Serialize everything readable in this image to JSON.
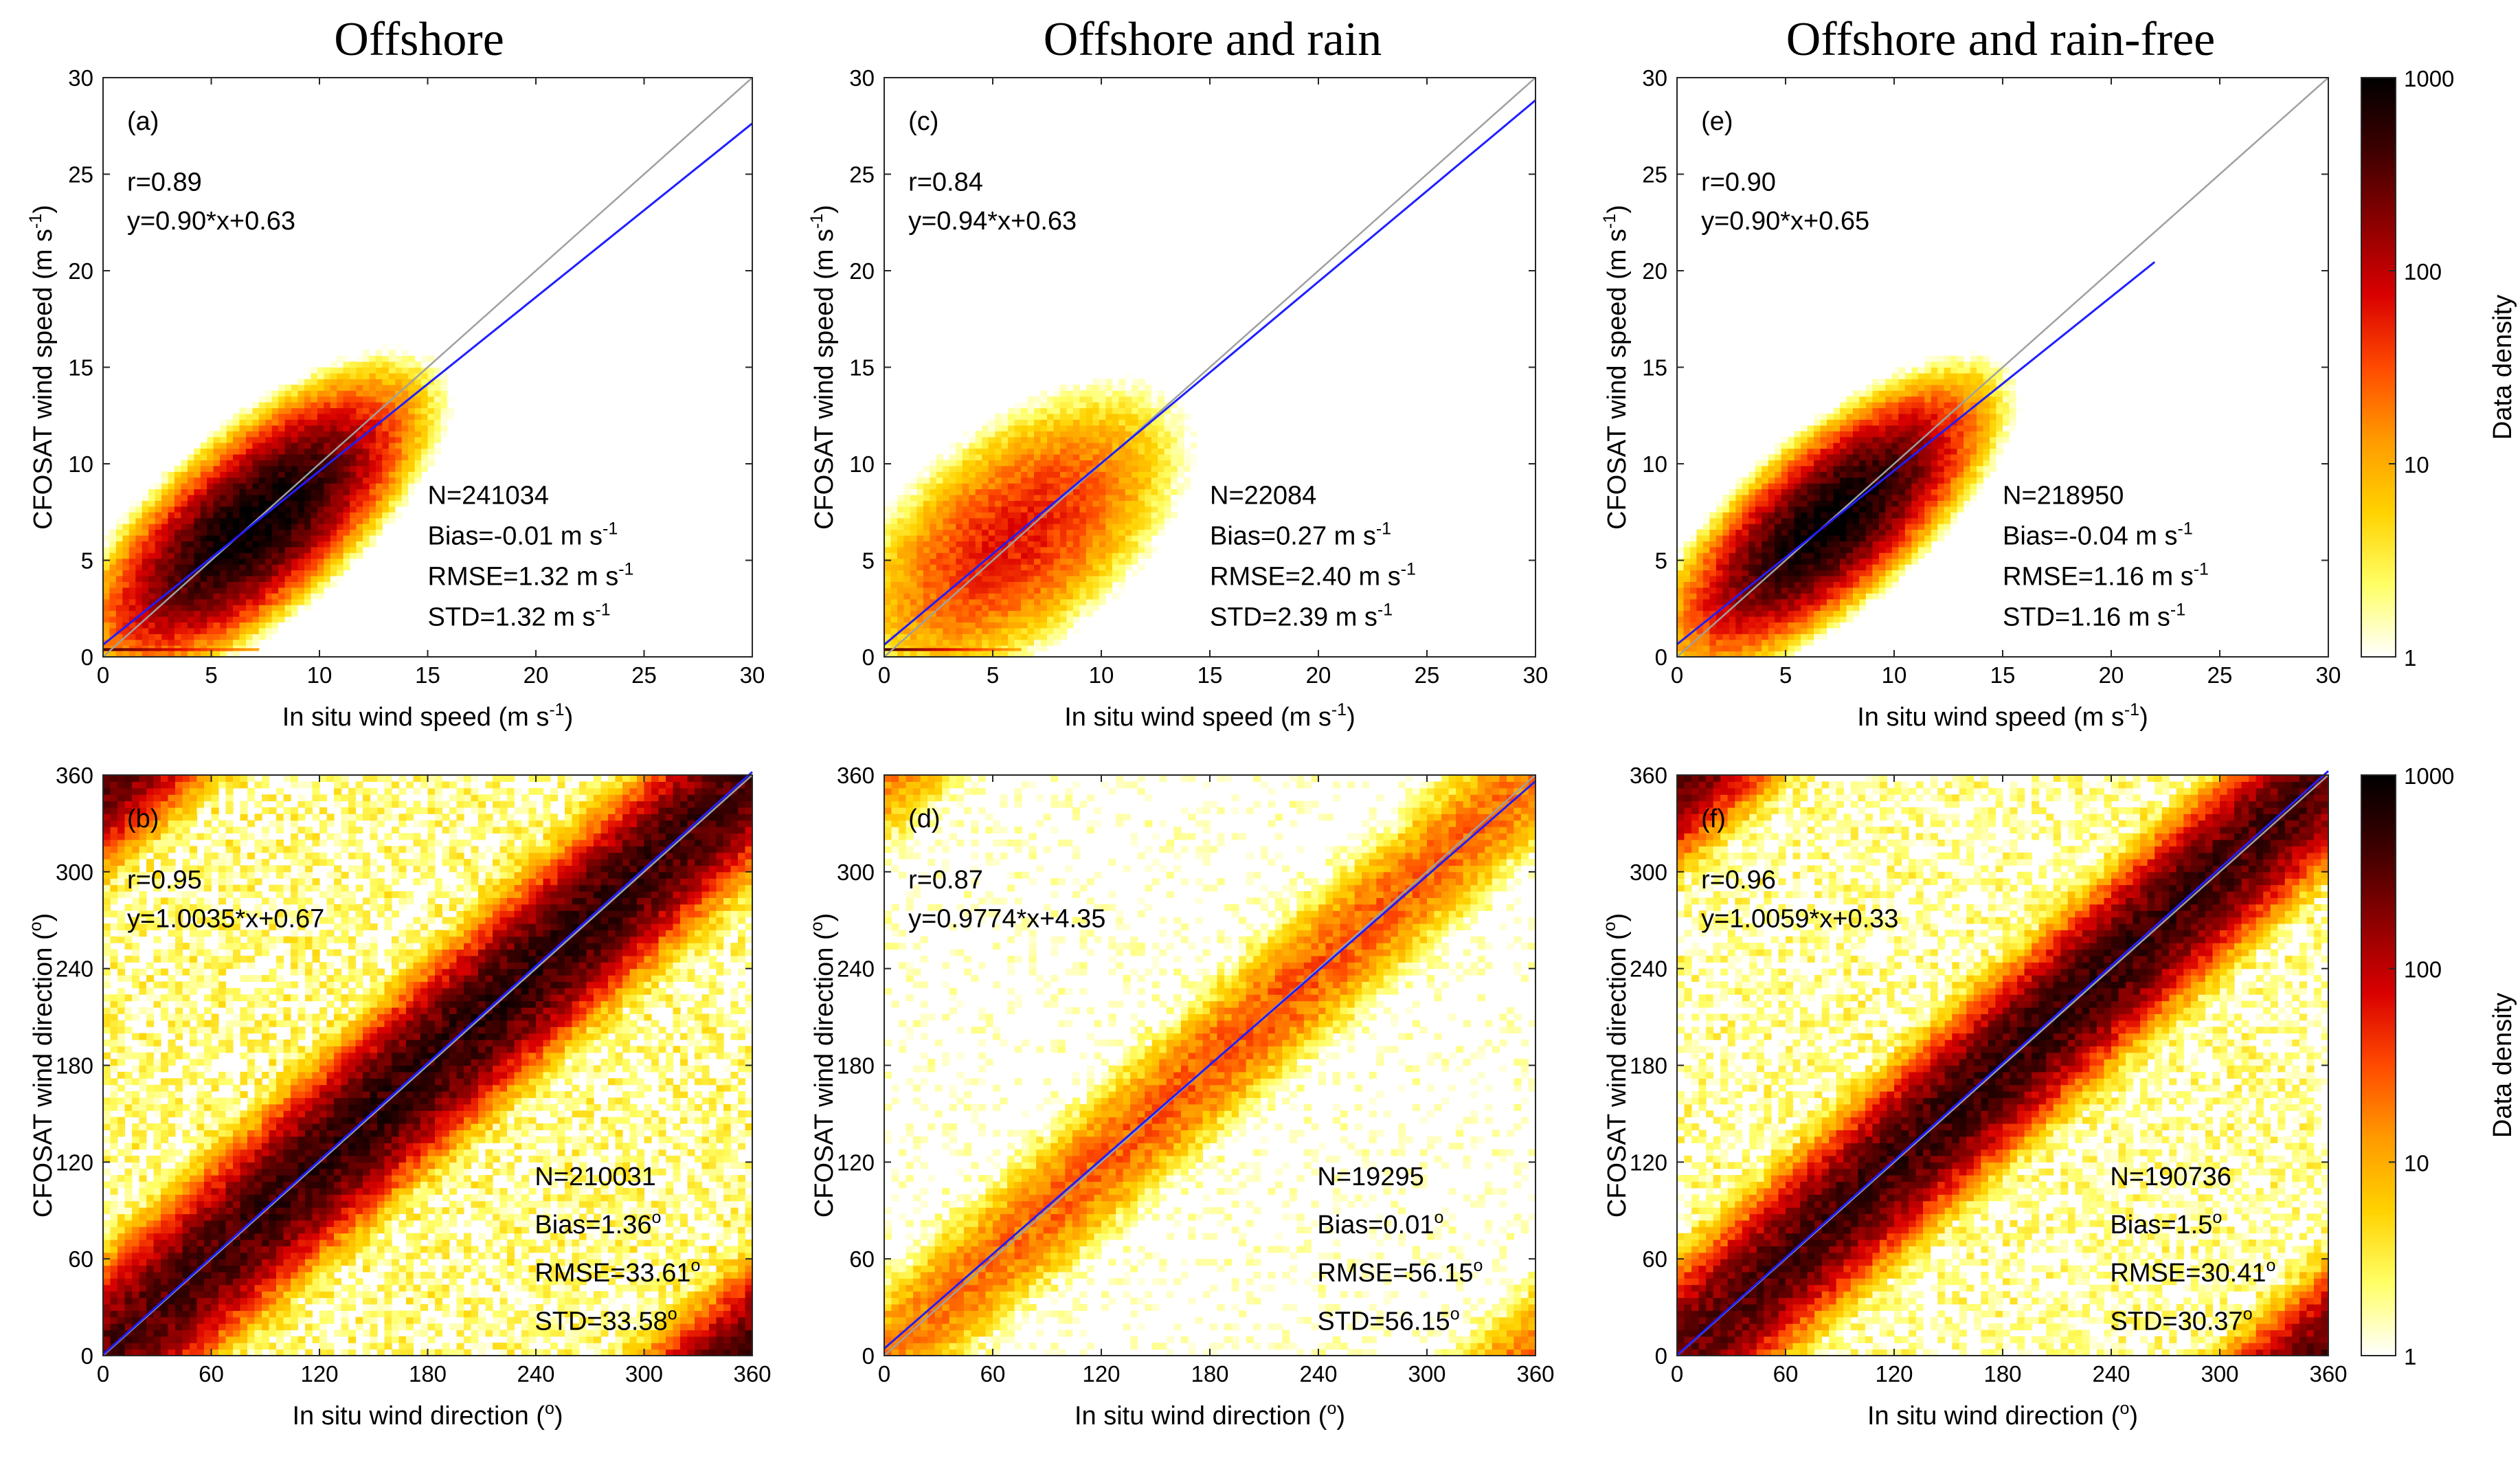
{
  "column_titles": [
    "Offshore",
    "Offshore and rain",
    "Offshore and rain-free"
  ],
  "colorbar": {
    "label": "Data density",
    "scale": "log",
    "range": [
      1,
      1000
    ],
    "ticks": [
      "1",
      "10",
      "100",
      "1000"
    ],
    "colors": [
      "#ffffff",
      "#ffff66",
      "#ffd200",
      "#ff9a00",
      "#ff4a00",
      "#d90000",
      "#8b0000",
      "#3d0000",
      "#000000"
    ]
  },
  "reference_line_color": "#a0a0a0",
  "fit_line_color": "#1f1fff",
  "chart_data": [
    {
      "type": "heatmap",
      "panel": "(a)",
      "column": "Offshore",
      "xlabel": "In situ wind speed (m s-1)",
      "ylabel": "CFOSAT wind speed (m s-1)",
      "xlim": [
        0,
        30
      ],
      "ylim": [
        0,
        30
      ],
      "xticks": [
        0,
        5,
        10,
        15,
        20,
        25,
        30
      ],
      "yticks": [
        0,
        5,
        10,
        15,
        20,
        25,
        30
      ],
      "r_text": "r=0.89",
      "fit_text": "y=0.90*x+0.63",
      "fit": {
        "slope": 0.9,
        "intercept": 0.63,
        "x_range": [
          0,
          30
        ]
      },
      "stats": {
        "n": "N=241034",
        "bias": "Bias=-0.01 m s",
        "rmse": "RMSE=1.32 m s",
        "std": "STD=1.32 m s",
        "unit_sup": "-1"
      },
      "density": {
        "kind": "speed",
        "center": [
          7,
          6.9
        ],
        "spread_along": 3.2,
        "spread_across": 1.3,
        "peak": 1000,
        "max_x": 22
      },
      "low_band": {
        "y": 0.3,
        "x_range": [
          0,
          7
        ]
      }
    },
    {
      "type": "heatmap",
      "panel": "(b)",
      "column": "Offshore",
      "xlabel": "In situ wind direction (o)",
      "ylabel": "CFOSAT wind direction (o)",
      "xlim": [
        0,
        360
      ],
      "ylim": [
        0,
        360
      ],
      "xticks": [
        0,
        60,
        120,
        180,
        240,
        300,
        360
      ],
      "yticks": [
        0,
        60,
        120,
        180,
        240,
        300,
        360
      ],
      "r_text": "r=0.95",
      "fit_text": "y=1.0035*x+0.67",
      "fit": {
        "slope": 1.0035,
        "intercept": 0.67,
        "x_range": [
          0,
          360
        ]
      },
      "stats": {
        "n": "N=210031",
        "bias": "Bias=1.36",
        "rmse": "RMSE=33.61",
        "std": "STD=33.58",
        "unit_sup": "o"
      },
      "density": {
        "kind": "direction",
        "peak": 600,
        "diag_width": 22,
        "background": 0.6
      }
    },
    {
      "type": "heatmap",
      "panel": "(c)",
      "column": "Offshore and rain",
      "xlabel": "In situ wind speed (m s-1)",
      "ylabel": "CFOSAT wind speed (m s-1)",
      "xlim": [
        0,
        30
      ],
      "ylim": [
        0,
        30
      ],
      "xticks": [
        0,
        5,
        10,
        15,
        20,
        25,
        30
      ],
      "yticks": [
        0,
        5,
        10,
        15,
        20,
        25,
        30
      ],
      "r_text": "r=0.84",
      "fit_text": "y=0.94*x+0.63",
      "fit": {
        "slope": 0.94,
        "intercept": 0.63,
        "x_range": [
          0,
          30
        ]
      },
      "stats": {
        "n": "N=22084",
        "bias": "Bias=0.27 m s",
        "rmse": "RMSE=2.40 m s",
        "std": "STD=2.39 m s",
        "unit_sup": "-1"
      },
      "density": {
        "kind": "speed",
        "center": [
          6,
          6.2
        ],
        "spread_along": 3.6,
        "spread_across": 1.9,
        "peak": 60,
        "max_x": 22
      },
      "low_band": {
        "y": 0.3,
        "x_range": [
          0,
          6
        ]
      }
    },
    {
      "type": "heatmap",
      "panel": "(d)",
      "column": "Offshore and rain",
      "xlabel": "In situ wind direction (o)",
      "ylabel": "CFOSAT wind direction (o)",
      "xlim": [
        0,
        360
      ],
      "ylim": [
        0,
        360
      ],
      "xticks": [
        0,
        60,
        120,
        180,
        240,
        300,
        360
      ],
      "yticks": [
        0,
        60,
        120,
        180,
        240,
        300,
        360
      ],
      "r_text": "r=0.87",
      "fit_text": "y=0.9774*x+4.35",
      "fit": {
        "slope": 0.9774,
        "intercept": 4.35,
        "x_range": [
          0,
          360
        ]
      },
      "stats": {
        "n": "N=19295",
        "bias": "Bias=0.01",
        "rmse": "RMSE=56.15",
        "std": "STD=56.15",
        "unit_sup": "o"
      },
      "density": {
        "kind": "direction",
        "peak": 30,
        "diag_width": 20,
        "background": 0.25
      }
    },
    {
      "type": "heatmap",
      "panel": "(e)",
      "column": "Offshore and rain-free",
      "xlabel": "In situ wind speed (m s-1)",
      "ylabel": "CFOSAT wind speed (m s-1)",
      "xlim": [
        0,
        30
      ],
      "ylim": [
        0,
        30
      ],
      "xticks": [
        0,
        5,
        10,
        15,
        20,
        25,
        30
      ],
      "yticks": [
        0,
        5,
        10,
        15,
        20,
        25,
        30
      ],
      "r_text": "r=0.90",
      "fit_text": "y=0.90*x+0.65",
      "fit": {
        "slope": 0.9,
        "intercept": 0.65,
        "x_range": [
          0,
          22
        ]
      },
      "stats": {
        "n": "N=218950",
        "bias": "Bias=-0.04 m s",
        "rmse": "RMSE=1.16 m s",
        "std": "STD=1.16 m s",
        "unit_sup": "-1"
      },
      "density": {
        "kind": "speed",
        "center": [
          7,
          7.0
        ],
        "spread_along": 3.1,
        "spread_across": 1.2,
        "peak": 1000,
        "max_x": 22
      }
    },
    {
      "type": "heatmap",
      "panel": "(f)",
      "column": "Offshore and rain-free",
      "xlabel": "In situ wind direction (o)",
      "ylabel": "CFOSAT wind direction (o)",
      "xlim": [
        0,
        360
      ],
      "ylim": [
        0,
        360
      ],
      "xticks": [
        0,
        60,
        120,
        180,
        240,
        300,
        360
      ],
      "yticks": [
        0,
        60,
        120,
        180,
        240,
        300,
        360
      ],
      "r_text": "r=0.96",
      "fit_text": "y=1.0059*x+0.33",
      "fit": {
        "slope": 1.0059,
        "intercept": 0.33,
        "x_range": [
          0,
          360
        ]
      },
      "stats": {
        "n": "N=190736",
        "bias": "Bias=1.5",
        "rmse": "RMSE=30.41",
        "std": "STD=30.37",
        "unit_sup": "o"
      },
      "density": {
        "kind": "direction",
        "peak": 550,
        "diag_width": 21,
        "background": 0.5
      }
    }
  ]
}
